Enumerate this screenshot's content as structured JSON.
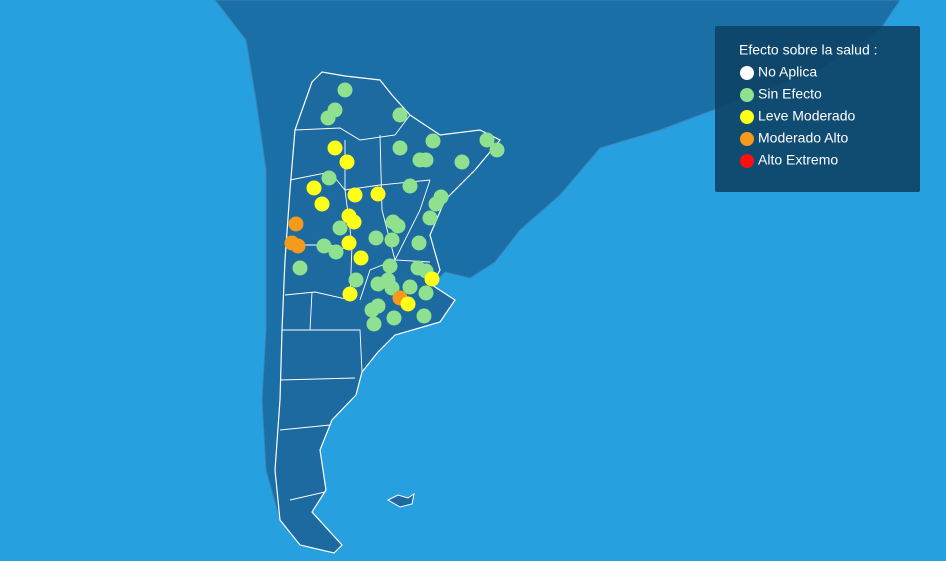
{
  "legend": {
    "title": "Efecto sobre la salud :",
    "items": [
      {
        "label": "No Aplica",
        "color": "#ffffff"
      },
      {
        "label": "Sin Efecto",
        "color": "#8fe08f"
      },
      {
        "label": "Leve Moderado",
        "color": "#ffff1a"
      },
      {
        "label": "Moderado Alto",
        "color": "#f59a1b"
      },
      {
        "label": "Alto Extremo",
        "color": "#ff1010"
      }
    ]
  }
}
